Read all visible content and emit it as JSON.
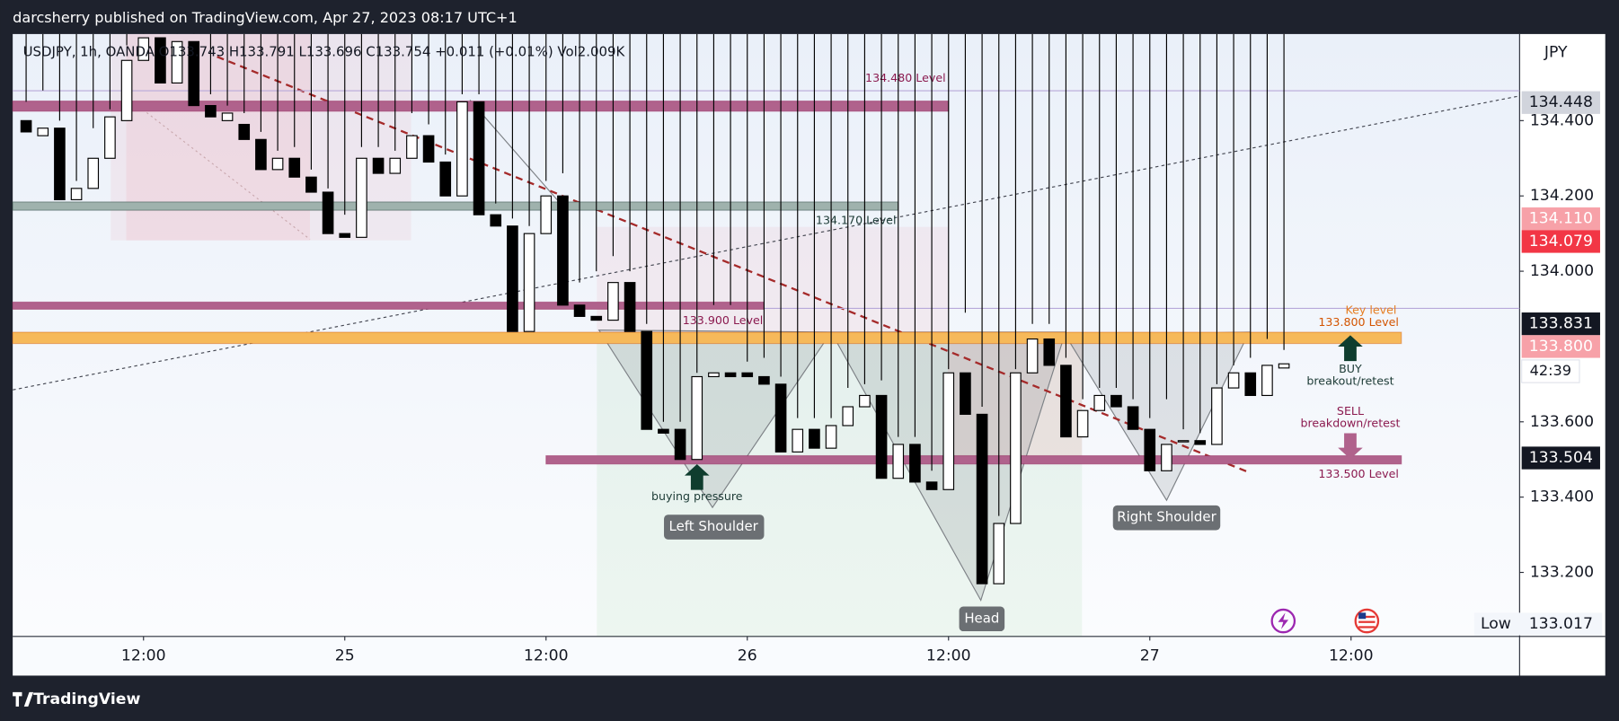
{
  "header": "darcsherry published on TradingView.com, Apr 27, 2023 08:17 UTC+1",
  "footer": "TradingView",
  "chart_data": {
    "type": "candlestick",
    "legend": "USDJPY, 1h, OANDA  O133.743  H133.791  L133.696  C133.754  +0.011 (+0.01%)  Vol2.009K",
    "currency": "JPY",
    "up_color": "#ffffff",
    "down_color": "#000000",
    "x": [
      -7,
      -6,
      -5,
      -4,
      -3,
      -2,
      -1,
      0,
      1,
      2,
      3,
      4,
      5,
      6,
      7,
      8,
      9,
      10,
      11,
      12,
      13,
      14,
      15,
      16,
      17,
      18,
      19,
      20,
      21,
      22,
      23,
      24,
      25,
      26,
      27,
      28,
      29,
      30,
      31,
      32,
      33,
      34,
      35,
      36,
      37,
      38,
      39,
      40,
      41,
      42,
      43,
      44,
      45,
      46,
      47,
      48,
      49,
      50,
      51,
      52,
      53,
      54,
      55,
      56,
      57,
      58,
      59,
      60,
      61,
      62,
      63,
      64,
      65,
      66,
      67,
      68
    ],
    "open": [
      134.4,
      134.36,
      134.38,
      134.19,
      134.22,
      134.3,
      134.4,
      134.56,
      134.62,
      134.5,
      134.61,
      134.44,
      134.4,
      134.39,
      134.35,
      134.27,
      134.3,
      134.25,
      134.21,
      134.1,
      134.09,
      134.3,
      134.26,
      134.3,
      134.36,
      134.29,
      134.2,
      134.45,
      134.15,
      134.12,
      133.84,
      134.1,
      134.2,
      133.91,
      133.88,
      133.87,
      133.97,
      133.84,
      133.58,
      133.58,
      133.5,
      133.72,
      133.73,
      133.73,
      133.72,
      133.7,
      133.52,
      133.58,
      133.53,
      133.59,
      133.64,
      133.67,
      133.45,
      133.54,
      133.44,
      133.42,
      133.73,
      133.62,
      133.17,
      133.33,
      133.73,
      133.82,
      133.75,
      133.56,
      133.63,
      133.67,
      133.64,
      133.58,
      133.47,
      133.55,
      133.55,
      133.54,
      133.69,
      133.73,
      133.67,
      133.743
    ],
    "high": [
      134.45,
      134.48,
      134.4,
      134.24,
      134.38,
      134.43,
      134.6,
      134.63,
      134.63,
      134.63,
      134.63,
      134.47,
      134.44,
      134.42,
      134.37,
      134.32,
      134.33,
      134.27,
      134.22,
      134.15,
      134.33,
      134.33,
      134.32,
      134.42,
      134.39,
      134.31,
      134.47,
      134.47,
      134.18,
      134.14,
      134.12,
      134.24,
      134.26,
      133.97,
      134.0,
      134.04,
      134.0,
      133.86,
      133.6,
      133.6,
      133.73,
      133.91,
      133.91,
      133.76,
      133.77,
      133.72,
      133.61,
      133.61,
      133.61,
      133.69,
      133.7,
      133.71,
      133.56,
      133.56,
      133.47,
      133.74,
      133.89,
      133.64,
      133.35,
      133.74,
      133.86,
      133.86,
      133.77,
      133.66,
      133.69,
      133.69,
      133.66,
      133.61,
      133.66,
      133.58,
      133.57,
      133.7,
      133.75,
      133.77,
      133.82,
      133.791
    ],
    "low": {
      "label": "Low",
      "value": 133.017
    },
    "close": [
      134.37,
      134.38,
      134.19,
      134.22,
      134.3,
      134.41,
      134.56,
      134.62,
      134.5,
      134.61,
      134.44,
      134.41,
      134.42,
      134.35,
      134.27,
      134.3,
      134.25,
      134.21,
      134.1,
      134.09,
      134.3,
      134.26,
      134.3,
      134.36,
      134.29,
      134.2,
      134.45,
      134.15,
      134.12,
      133.84,
      134.1,
      134.2,
      133.91,
      133.88,
      133.87,
      133.97,
      133.84,
      133.58,
      133.57,
      133.5,
      133.72,
      133.73,
      133.72,
      133.72,
      133.7,
      133.52,
      133.58,
      133.53,
      133.59,
      133.64,
      133.67,
      133.45,
      133.54,
      133.44,
      133.42,
      133.73,
      133.62,
      133.17,
      133.33,
      133.73,
      133.82,
      133.75,
      133.56,
      133.63,
      133.67,
      133.64,
      133.58,
      133.47,
      133.54,
      133.55,
      133.54,
      133.69,
      133.73,
      133.67,
      133.75,
      133.754
    ],
    "xlim": [
      -7.8,
      82.05
    ],
    "xticks": [
      {
        "value": 0,
        "label": "12:00"
      },
      {
        "value": 12,
        "label": "25"
      },
      {
        "value": 24,
        "label": "12:00"
      },
      {
        "value": 36,
        "label": "26"
      },
      {
        "value": 48,
        "label": "12:00"
      },
      {
        "value": 60,
        "label": "27"
      },
      {
        "value": 72,
        "label": "12:00"
      }
    ],
    "ylim": [
      133.03,
      134.63
    ],
    "yticks": [
      {
        "value": 133.2,
        "label": "133.200"
      },
      {
        "value": 133.4,
        "label": "133.400"
      },
      {
        "value": 133.6,
        "label": "133.600"
      },
      {
        "value": 134.0,
        "label": "134.000"
      },
      {
        "value": 134.2,
        "label": "134.200"
      },
      {
        "value": 134.4,
        "label": "134.400"
      }
    ],
    "grid": false,
    "levels": [
      {
        "label": "134.480 Level",
        "y": [
          134.425,
          134.452
        ],
        "x": [
          -7.8,
          48
        ],
        "color": "#b0628c",
        "text_color": "#8b1a4f"
      },
      {
        "label": "134.170 Level",
        "y": [
          134.162,
          134.184
        ],
        "x": [
          -7.8,
          45
        ],
        "color": "#9fb2ad",
        "text_color": "#1d3b36"
      },
      {
        "label": "133.900 Level",
        "y": [
          133.899,
          133.918
        ],
        "x": [
          -7.8,
          37
        ],
        "color": "#b0628c",
        "text_color": "#8b1a4f"
      },
      {
        "label": "133.800 Level",
        "y": [
          133.808,
          133.838
        ],
        "x": [
          -7.8,
          75
        ],
        "color": "#f6b95a",
        "text_color": "#d35400"
      },
      {
        "label": "133.500 Level",
        "y": [
          133.488,
          133.51
        ],
        "x": [
          24,
          75
        ],
        "color": "#b0628c",
        "text_color": "#8b1a4f"
      }
    ],
    "price_labels": [
      {
        "value": 134.448,
        "bg": "#d1d4dc",
        "text_color": "#131722"
      },
      {
        "value": 134.11,
        "label": "134.110",
        "bg": "#f7a1a8",
        "text_color": "#ffffff"
      },
      {
        "value": 134.079,
        "bg": "#f23645",
        "text_color": "#ffffff"
      },
      {
        "value": 133.831,
        "bg": "#131722",
        "text_color": "#ffffff"
      },
      {
        "value": 133.8,
        "label": "133.800",
        "bg": "#f7a1a8",
        "text_color": "#ffffff"
      },
      {
        "value": 133.504,
        "bg": "#131722",
        "text_color": "#ffffff"
      }
    ],
    "countdown": "42:39",
    "notes": {
      "key_level": "Key level",
      "buy": "BUY",
      "breakout": "breakout/retest",
      "sell": "SELL",
      "breakdown": "breakdown/retest",
      "buying_pressure": "buying pressure"
    },
    "pattern_labels": [
      "Left Shoulder",
      "Head",
      "Right Shoulder"
    ]
  }
}
